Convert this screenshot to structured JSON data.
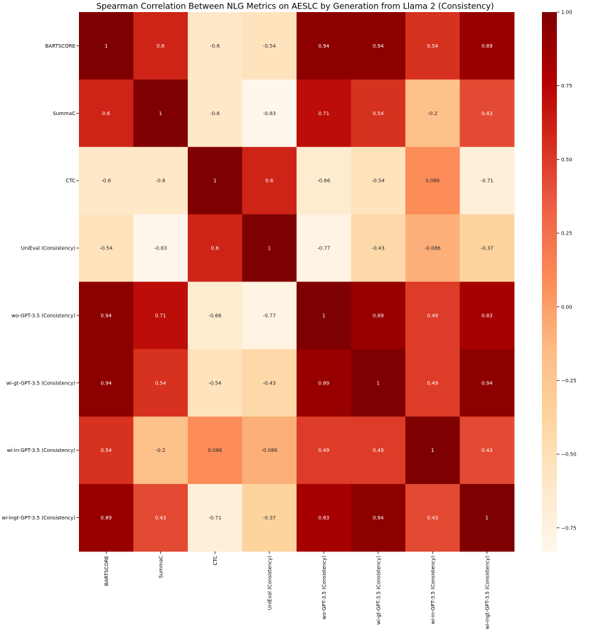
{
  "chart_data": {
    "type": "heatmap",
    "title": "Spearman Correlation Between NLG Metrics on AESLC by Generation from Llama 2 (Consistency)",
    "xlabel": "",
    "ylabel": "",
    "row_labels": [
      "BARTSCORE",
      "SummaC",
      "CTC",
      "UniEval (Consistency)",
      "wo-GPT-3.5 (Consistency)",
      "wi-gt-GPT-3.5 (Consistency)",
      "wi-in-GPT-3.5 (Consistency)",
      "wi-ingt-GPT-3.5 (Consistency)"
    ],
    "col_labels": [
      "BARTSCORE",
      "SummaC",
      "CTC",
      "UniEval (Consistency)",
      "wo-GPT-3.5 (Consistency)",
      "wi-gt-GPT-3.5 (Consistency)",
      "wi-in-GPT-3.5 (Consistency)",
      "wi-ingt-GPT-3.5 (Consistency)"
    ],
    "values": [
      [
        1,
        0.6,
        -0.6,
        -0.54,
        0.94,
        0.94,
        0.54,
        0.89
      ],
      [
        0.6,
        1,
        -0.6,
        -0.83,
        0.71,
        0.54,
        -0.2,
        0.43
      ],
      [
        -0.6,
        -0.6,
        1,
        0.6,
        -0.66,
        -0.54,
        0.086,
        -0.71
      ],
      [
        -0.54,
        -0.83,
        0.6,
        1,
        -0.77,
        -0.43,
        -0.086,
        -0.37
      ],
      [
        0.94,
        0.71,
        -0.66,
        -0.77,
        1,
        0.89,
        0.49,
        0.83
      ],
      [
        0.94,
        0.54,
        -0.54,
        -0.43,
        0.89,
        1,
        0.49,
        0.94
      ],
      [
        0.54,
        -0.2,
        0.086,
        -0.086,
        0.49,
        0.49,
        1,
        0.43
      ],
      [
        0.89,
        0.43,
        -0.71,
        -0.37,
        0.83,
        0.94,
        0.43,
        1
      ]
    ],
    "value_labels": [
      [
        "1",
        "0.6",
        "-0.6",
        "-0.54",
        "0.94",
        "0.94",
        "0.54",
        "0.89"
      ],
      [
        "0.6",
        "1",
        "-0.6",
        "-0.83",
        "0.71",
        "0.54",
        "-0.2",
        "0.43"
      ],
      [
        "-0.6",
        "-0.6",
        "1",
        "0.6",
        "-0.66",
        "-0.54",
        "0.086",
        "-0.71"
      ],
      [
        "-0.54",
        "-0.83",
        "0.6",
        "1",
        "-0.77",
        "-0.43",
        "-0.086",
        "-0.37"
      ],
      [
        "0.94",
        "0.71",
        "-0.66",
        "-0.77",
        "1",
        "0.89",
        "0.49",
        "0.83"
      ],
      [
        "0.94",
        "0.54",
        "-0.54",
        "-0.43",
        "0.89",
        "1",
        "0.49",
        "0.94"
      ],
      [
        "0.54",
        "-0.2",
        "0.086",
        "-0.086",
        "0.49",
        "0.49",
        "1",
        "0.43"
      ],
      [
        "0.89",
        "0.43",
        "-0.71",
        "-0.37",
        "0.83",
        "0.94",
        "0.43",
        "1"
      ]
    ],
    "colormap": "OrRd",
    "color_range": [
      -0.83,
      1
    ],
    "colorbar_ticks": [
      1.0,
      0.75,
      0.5,
      0.25,
      0.0,
      -0.25,
      -0.5,
      -0.75
    ],
    "colorbar_tick_labels": [
      "1.00",
      "0.75",
      "0.50",
      "0.25",
      "0.00",
      "−0.25",
      "−0.50",
      "−0.75"
    ],
    "colorbar_stops": [
      "#fff7ec",
      "#fee8c8",
      "#fdd49e",
      "#fdbb84",
      "#fc8d59",
      "#ef6548",
      "#d7301f",
      "#b30000",
      "#7f0000"
    ],
    "x_tick_rotation": "vertical",
    "colorbar_position": "right"
  }
}
